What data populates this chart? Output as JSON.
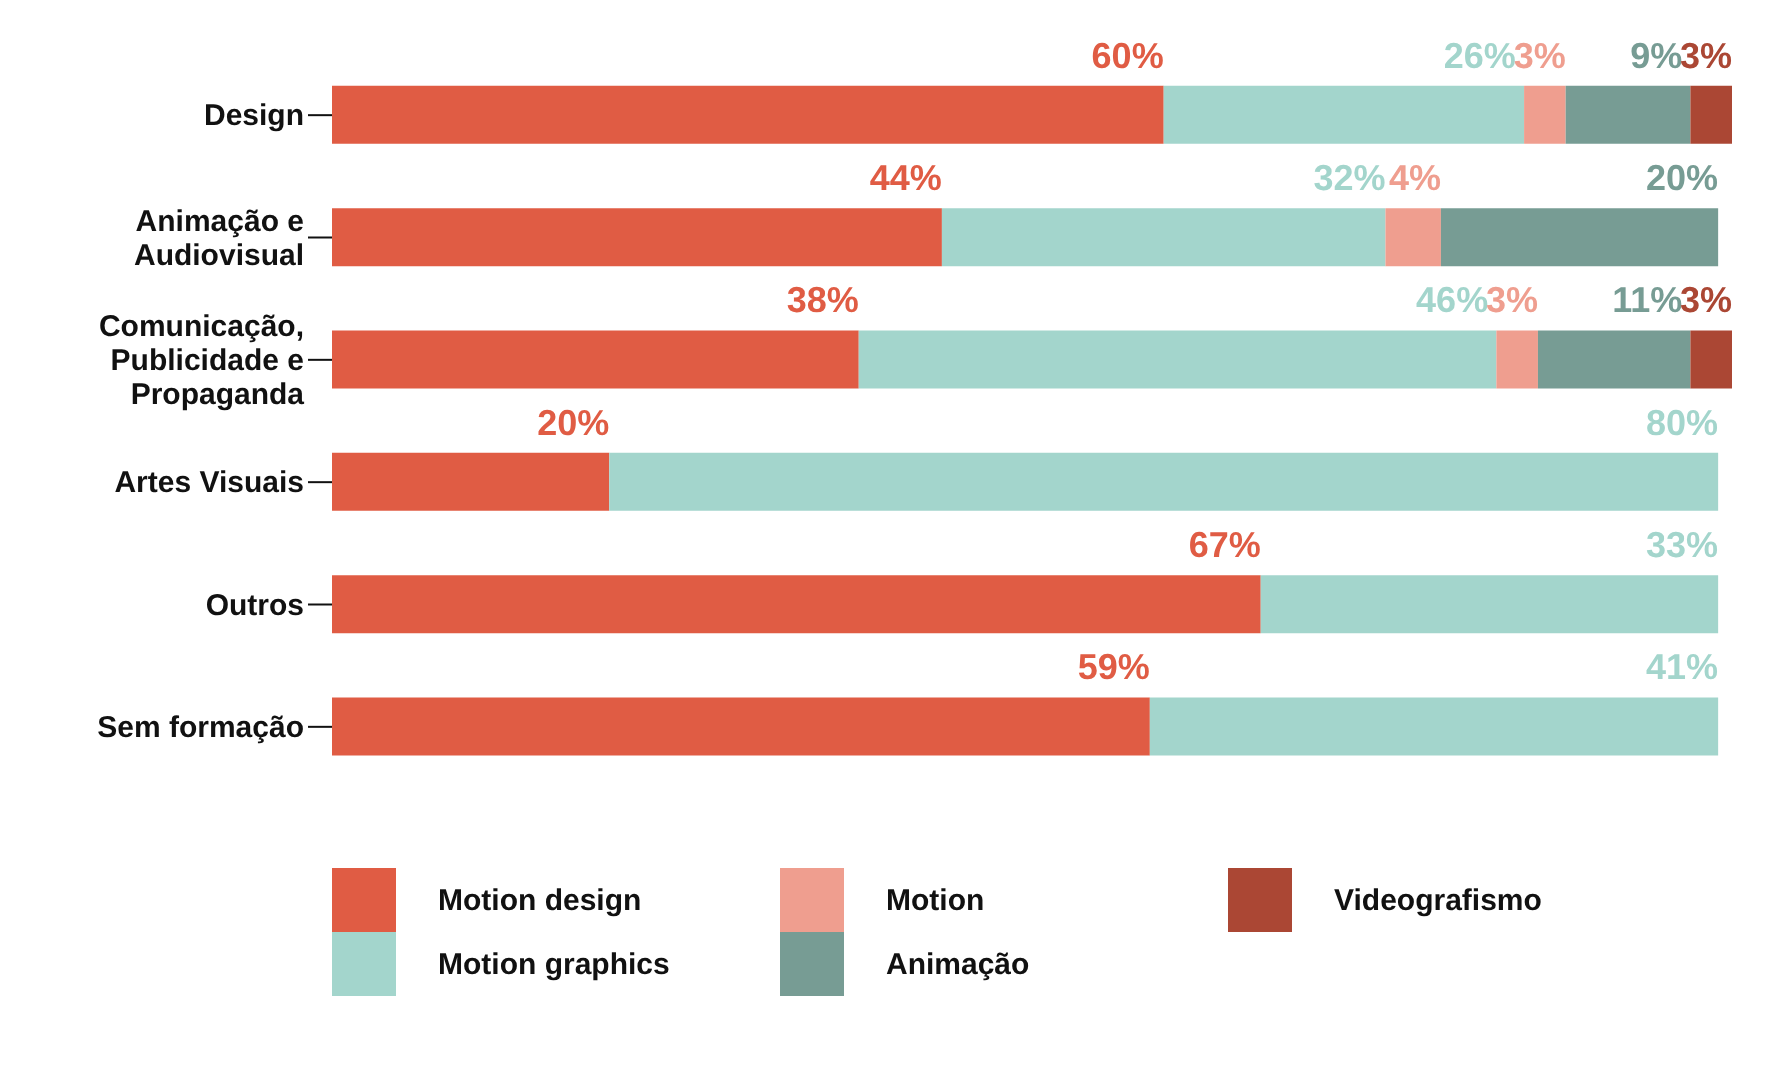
{
  "chart_data": {
    "type": "bar",
    "orientation": "horizontal",
    "stacked": true,
    "legend": "bottom",
    "categories": [
      "Design",
      "Animação e Audiovisual",
      "Comunicação, Publicidade e Propaganda",
      "Artes Visuais",
      "Outros",
      "Sem formação"
    ],
    "series": [
      {
        "name": "Motion design",
        "color": "#e05c44",
        "values": [
          60,
          44,
          38,
          20,
          67,
          59
        ],
        "value_labels": [
          "60%",
          "44%",
          "38%",
          "20%",
          "67%",
          "59%"
        ]
      },
      {
        "name": "Motion graphics",
        "color": "#a3d5cc",
        "values": [
          26,
          32,
          46,
          80,
          33,
          41
        ],
        "value_labels": [
          "26%",
          "32%",
          "46%",
          "80%",
          "33%",
          "41%"
        ]
      },
      {
        "name": "Motion",
        "color": "#ef9e8f",
        "values": [
          3,
          4,
          3,
          null,
          null,
          null
        ],
        "value_labels": [
          "3%",
          "4%",
          "3%",
          null,
          null,
          null
        ]
      },
      {
        "name": "Animação",
        "color": "#779c94",
        "values": [
          9,
          20,
          11,
          null,
          null,
          null
        ],
        "value_labels": [
          "9%",
          "20%",
          "11%",
          null,
          null,
          null
        ]
      },
      {
        "name": "Videografismo",
        "color": "#ab4734",
        "values": [
          3,
          null,
          3,
          null,
          null,
          null
        ],
        "value_labels": [
          "3%",
          null,
          "3%",
          null,
          null,
          null
        ]
      }
    ]
  }
}
